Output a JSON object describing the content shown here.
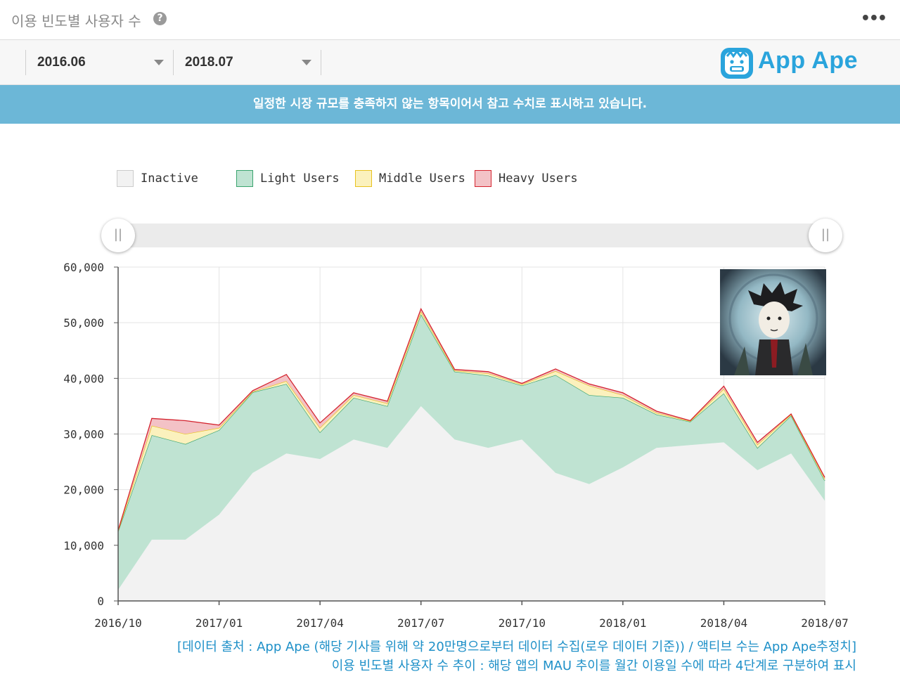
{
  "header": {
    "title": "이용 빈도별 사용자 수",
    "help_glyph": "?",
    "more_glyph": "•••"
  },
  "toolbar": {
    "start_date": "2016.06",
    "end_date": "2018.07"
  },
  "logo": {
    "text": "App Ape"
  },
  "notice": "일정한 시장 규모를 충족하지 않는 항목이어서 참고 수치로 표시하고 있습니다.",
  "legend": [
    {
      "label": "Inactive",
      "fill": "#f2f2f2",
      "stroke": "#cccccc"
    },
    {
      "label": "Light Users",
      "fill": "#bfe3d2",
      "stroke": "#3aa46f"
    },
    {
      "label": "Middle Users",
      "fill": "#fbf1bd",
      "stroke": "#e8c21f"
    },
    {
      "label": "Heavy Users",
      "fill": "#f3c2c6",
      "stroke": "#d4242f"
    }
  ],
  "slider": {
    "left_glyph": "||",
    "right_glyph": "||"
  },
  "chart_data": {
    "type": "area",
    "stacked": true,
    "x": [
      "2016/10",
      "2016/11",
      "2016/12",
      "2017/01",
      "2017/02",
      "2017/03",
      "2017/04",
      "2017/05",
      "2017/06",
      "2017/07",
      "2017/08",
      "2017/09",
      "2017/10",
      "2017/11",
      "2017/12",
      "2018/01",
      "2018/02",
      "2018/03",
      "2018/04",
      "2018/05",
      "2018/06",
      "2018/07"
    ],
    "x_tick_labels": [
      "2016/10",
      "2017/01",
      "2017/04",
      "2017/07",
      "2017/10",
      "2018/01",
      "2018/04",
      "2018/07"
    ],
    "y_tick_labels": [
      "0",
      "10,000",
      "20,000",
      "30,000",
      "40,000",
      "50,000",
      "60,000"
    ],
    "ylim": [
      0,
      60000
    ],
    "grid": true,
    "legend_position": "top",
    "series": [
      {
        "name": "Inactive",
        "values": [
          2000,
          11000,
          11000,
          15500,
          23000,
          26500,
          25500,
          29000,
          27500,
          35000,
          29000,
          27500,
          29000,
          23000,
          21000,
          24000,
          27500,
          28000,
          28500,
          23500,
          26500,
          18000
        ]
      },
      {
        "name": "Light Users",
        "values": [
          10500,
          18800,
          17200,
          15200,
          14500,
          12500,
          4800,
          7500,
          7500,
          16500,
          12200,
          13000,
          9700,
          17600,
          16000,
          12500,
          6000,
          4200,
          8800,
          4000,
          6800,
          3600
        ]
      },
      {
        "name": "Middle Users",
        "values": [
          100,
          1700,
          1800,
          400,
          100,
          500,
          800,
          500,
          500,
          500,
          200,
          400,
          200,
          700,
          1700,
          500,
          300,
          100,
          800,
          600,
          200,
          300
        ]
      },
      {
        "name": "Heavy Users",
        "values": [
          100,
          1300,
          2400,
          500,
          200,
          1200,
          900,
          400,
          400,
          500,
          200,
          300,
          200,
          400,
          300,
          400,
          300,
          100,
          500,
          400,
          100,
          300
        ]
      }
    ]
  },
  "captions": [
    "[데이터 출처 : App Ape (해당 기사를 위해 약 20만명으로부터 데이터 수집(로우 데이터 기준)) / 액티브 수는 App Ape추정치]",
    "이용 빈도별 사용자 수 추이 : 해당 앱의 MAU 추이를 월간 이용일 수에 따라 4단계로 구분하여 표시"
  ]
}
